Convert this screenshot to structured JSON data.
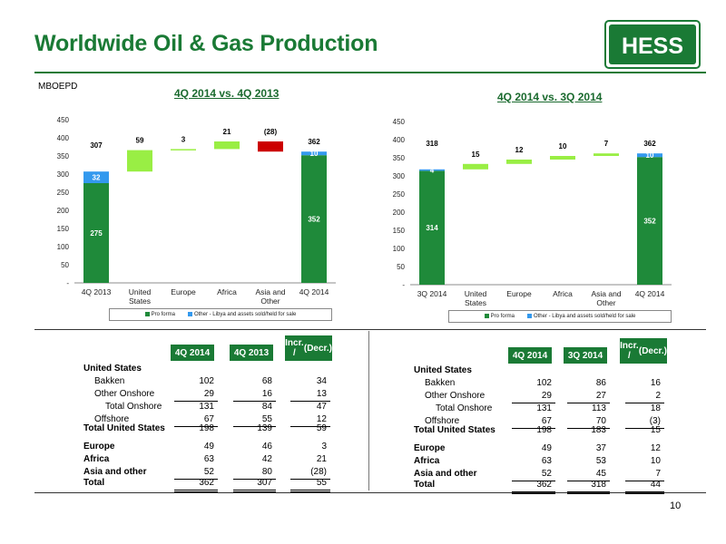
{
  "slide": {
    "title": "Worldwide Oil & Gas Production",
    "unit": "MBOEPD",
    "logo_text": "HESS",
    "page_number": "10",
    "colors": {
      "green": "#1a7a35",
      "bar_green": "#1f8a3a",
      "light_blue": "#3399ee",
      "lime": "#99ee44",
      "red": "#cc0000"
    }
  },
  "chart_data": [
    {
      "type": "bar",
      "title": "4Q 2014 vs. 4Q 2013",
      "variant": "waterfall",
      "categories": [
        "4Q 2013",
        "United States",
        "Europe",
        "Africa",
        "Asia and Other",
        "4Q 2014"
      ],
      "ylim": [
        0,
        450
      ],
      "yticks": [
        "-",
        "50",
        "100",
        "150",
        "200",
        "250",
        "300",
        "350",
        "400",
        "450"
      ],
      "start": {
        "pro_forma": 275,
        "other": 32,
        "total": 307
      },
      "changes": [
        59,
        3,
        21,
        -28
      ],
      "change_labels": [
        "59",
        "3",
        "21",
        "(28)"
      ],
      "end": {
        "pro_forma": 352,
        "other": 10,
        "total": 362
      },
      "legend": [
        "Pro forma",
        "Other - Libya and assets sold/held for sale"
      ]
    },
    {
      "type": "bar",
      "title": "4Q 2014 vs. 3Q 2014",
      "variant": "waterfall",
      "categories": [
        "3Q 2014",
        "United States",
        "Europe",
        "Africa",
        "Asia and Other",
        "4Q 2014"
      ],
      "ylim": [
        0,
        450
      ],
      "yticks": [
        "-",
        "50",
        "100",
        "150",
        "200",
        "250",
        "300",
        "350",
        "400",
        "450"
      ],
      "start": {
        "pro_forma": 314,
        "other": 4,
        "total": 318
      },
      "changes": [
        15,
        12,
        10,
        7
      ],
      "change_labels": [
        "15",
        "12",
        "10",
        "7"
      ],
      "end": {
        "pro_forma": 352,
        "other": 10,
        "total": 362
      },
      "legend": [
        "Pro forma",
        "Other - Libya and assets sold/held for sale"
      ]
    }
  ],
  "tables": [
    {
      "headers": [
        "4Q 2014",
        "4Q 2013",
        "Incr. / (Decr.)"
      ],
      "section": "United States",
      "rows": [
        {
          "label": "Bakken",
          "values": [
            "102",
            "68",
            "34"
          ]
        },
        {
          "label": "Other Onshore",
          "values": [
            "29",
            "16",
            "13"
          ]
        },
        {
          "label": "Total Onshore",
          "values": [
            "131",
            "84",
            "47"
          ]
        },
        {
          "label": "Offshore",
          "values": [
            "67",
            "55",
            "12"
          ]
        },
        {
          "label": "Total United States",
          "values": [
            "198",
            "139",
            "59"
          ]
        },
        {
          "label": "Europe",
          "values": [
            "49",
            "46",
            "3"
          ]
        },
        {
          "label": "Africa",
          "values": [
            "63",
            "42",
            "21"
          ]
        },
        {
          "label": "Asia and other",
          "values": [
            "52",
            "80",
            "(28)"
          ]
        },
        {
          "label": "Total",
          "values": [
            "362",
            "307",
            "55"
          ]
        }
      ]
    },
    {
      "headers": [
        "4Q 2014",
        "3Q 2014",
        "Incr. / (Decr.)"
      ],
      "section": "United States",
      "rows": [
        {
          "label": "Bakken",
          "values": [
            "102",
            "86",
            "16"
          ]
        },
        {
          "label": "Other Onshore",
          "values": [
            "29",
            "27",
            "2"
          ]
        },
        {
          "label": "Total Onshore",
          "values": [
            "131",
            "113",
            "18"
          ]
        },
        {
          "label": "Offshore",
          "values": [
            "67",
            "70",
            "(3)"
          ]
        },
        {
          "label": "Total United States",
          "values": [
            "198",
            "183",
            "15"
          ]
        },
        {
          "label": "Europe",
          "values": [
            "49",
            "37",
            "12"
          ]
        },
        {
          "label": "Africa",
          "values": [
            "63",
            "53",
            "10"
          ]
        },
        {
          "label": "Asia and other",
          "values": [
            "52",
            "45",
            "7"
          ]
        },
        {
          "label": "Total",
          "values": [
            "362",
            "318",
            "44"
          ]
        }
      ]
    }
  ]
}
